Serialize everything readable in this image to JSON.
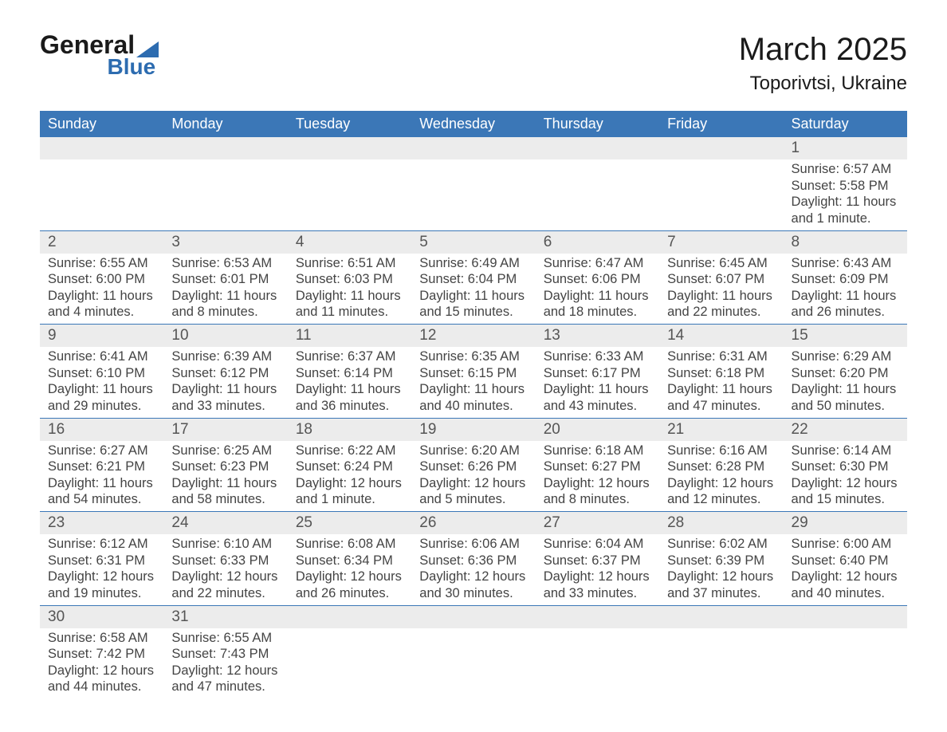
{
  "brand": {
    "line1": "General",
    "line2": "Blue"
  },
  "title": "March 2025",
  "location": "Toporivtsi, Ukraine",
  "colors": {
    "header_bg": "#3b77b7",
    "header_text": "#ffffff",
    "daynum_bg": "#ececec",
    "row_divider": "#3b77b7",
    "logo_accent": "#2d6cb0",
    "body_text": "#444444"
  },
  "day_headers": [
    "Sunday",
    "Monday",
    "Tuesday",
    "Wednesday",
    "Thursday",
    "Friday",
    "Saturday"
  ],
  "weeks": [
    [
      null,
      null,
      null,
      null,
      null,
      null,
      {
        "n": "1",
        "sunrise": "6:57 AM",
        "sunset": "5:58 PM",
        "daylight": "11 hours and 1 minute."
      }
    ],
    [
      {
        "n": "2",
        "sunrise": "6:55 AM",
        "sunset": "6:00 PM",
        "daylight": "11 hours and 4 minutes."
      },
      {
        "n": "3",
        "sunrise": "6:53 AM",
        "sunset": "6:01 PM",
        "daylight": "11 hours and 8 minutes."
      },
      {
        "n": "4",
        "sunrise": "6:51 AM",
        "sunset": "6:03 PM",
        "daylight": "11 hours and 11 minutes."
      },
      {
        "n": "5",
        "sunrise": "6:49 AM",
        "sunset": "6:04 PM",
        "daylight": "11 hours and 15 minutes."
      },
      {
        "n": "6",
        "sunrise": "6:47 AM",
        "sunset": "6:06 PM",
        "daylight": "11 hours and 18 minutes."
      },
      {
        "n": "7",
        "sunrise": "6:45 AM",
        "sunset": "6:07 PM",
        "daylight": "11 hours and 22 minutes."
      },
      {
        "n": "8",
        "sunrise": "6:43 AM",
        "sunset": "6:09 PM",
        "daylight": "11 hours and 26 minutes."
      }
    ],
    [
      {
        "n": "9",
        "sunrise": "6:41 AM",
        "sunset": "6:10 PM",
        "daylight": "11 hours and 29 minutes."
      },
      {
        "n": "10",
        "sunrise": "6:39 AM",
        "sunset": "6:12 PM",
        "daylight": "11 hours and 33 minutes."
      },
      {
        "n": "11",
        "sunrise": "6:37 AM",
        "sunset": "6:14 PM",
        "daylight": "11 hours and 36 minutes."
      },
      {
        "n": "12",
        "sunrise": "6:35 AM",
        "sunset": "6:15 PM",
        "daylight": "11 hours and 40 minutes."
      },
      {
        "n": "13",
        "sunrise": "6:33 AM",
        "sunset": "6:17 PM",
        "daylight": "11 hours and 43 minutes."
      },
      {
        "n": "14",
        "sunrise": "6:31 AM",
        "sunset": "6:18 PM",
        "daylight": "11 hours and 47 minutes."
      },
      {
        "n": "15",
        "sunrise": "6:29 AM",
        "sunset": "6:20 PM",
        "daylight": "11 hours and 50 minutes."
      }
    ],
    [
      {
        "n": "16",
        "sunrise": "6:27 AM",
        "sunset": "6:21 PM",
        "daylight": "11 hours and 54 minutes."
      },
      {
        "n": "17",
        "sunrise": "6:25 AM",
        "sunset": "6:23 PM",
        "daylight": "11 hours and 58 minutes."
      },
      {
        "n": "18",
        "sunrise": "6:22 AM",
        "sunset": "6:24 PM",
        "daylight": "12 hours and 1 minute."
      },
      {
        "n": "19",
        "sunrise": "6:20 AM",
        "sunset": "6:26 PM",
        "daylight": "12 hours and 5 minutes."
      },
      {
        "n": "20",
        "sunrise": "6:18 AM",
        "sunset": "6:27 PM",
        "daylight": "12 hours and 8 minutes."
      },
      {
        "n": "21",
        "sunrise": "6:16 AM",
        "sunset": "6:28 PM",
        "daylight": "12 hours and 12 minutes."
      },
      {
        "n": "22",
        "sunrise": "6:14 AM",
        "sunset": "6:30 PM",
        "daylight": "12 hours and 15 minutes."
      }
    ],
    [
      {
        "n": "23",
        "sunrise": "6:12 AM",
        "sunset": "6:31 PM",
        "daylight": "12 hours and 19 minutes."
      },
      {
        "n": "24",
        "sunrise": "6:10 AM",
        "sunset": "6:33 PM",
        "daylight": "12 hours and 22 minutes."
      },
      {
        "n": "25",
        "sunrise": "6:08 AM",
        "sunset": "6:34 PM",
        "daylight": "12 hours and 26 minutes."
      },
      {
        "n": "26",
        "sunrise": "6:06 AM",
        "sunset": "6:36 PM",
        "daylight": "12 hours and 30 minutes."
      },
      {
        "n": "27",
        "sunrise": "6:04 AM",
        "sunset": "6:37 PM",
        "daylight": "12 hours and 33 minutes."
      },
      {
        "n": "28",
        "sunrise": "6:02 AM",
        "sunset": "6:39 PM",
        "daylight": "12 hours and 37 minutes."
      },
      {
        "n": "29",
        "sunrise": "6:00 AM",
        "sunset": "6:40 PM",
        "daylight": "12 hours and 40 minutes."
      }
    ],
    [
      {
        "n": "30",
        "sunrise": "6:58 AM",
        "sunset": "7:42 PM",
        "daylight": "12 hours and 44 minutes."
      },
      {
        "n": "31",
        "sunrise": "6:55 AM",
        "sunset": "7:43 PM",
        "daylight": "12 hours and 47 minutes."
      },
      null,
      null,
      null,
      null,
      null
    ]
  ],
  "labels": {
    "sunrise": "Sunrise: ",
    "sunset": "Sunset: ",
    "daylight": "Daylight: "
  }
}
